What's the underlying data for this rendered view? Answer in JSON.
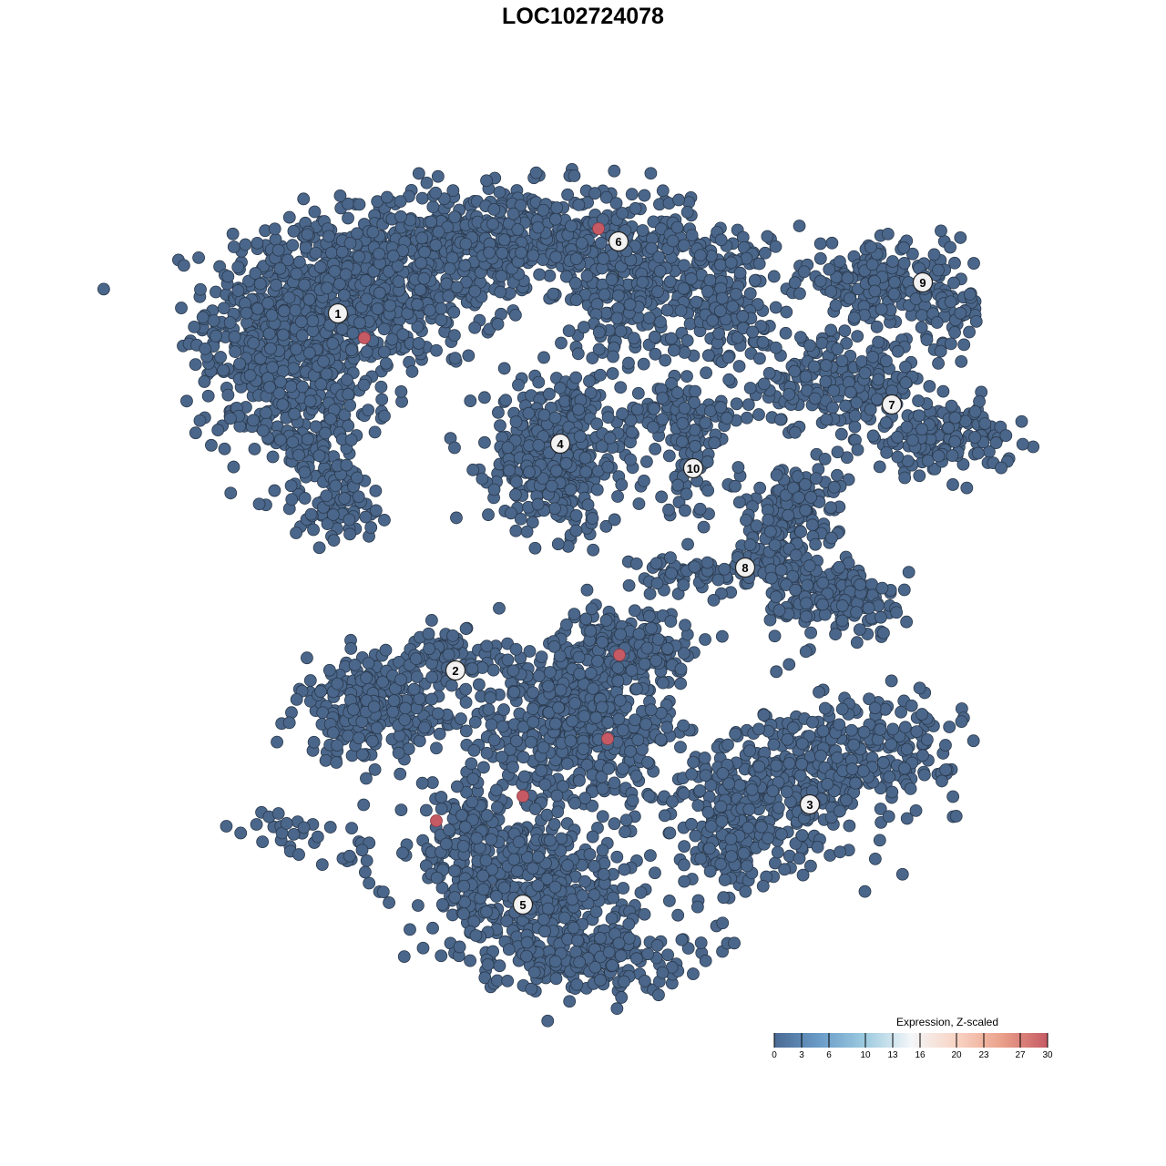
{
  "chart_data": {
    "type": "scatter",
    "title": "LOC102724078",
    "xlabel": "",
    "ylabel": "",
    "grid": false,
    "xlim": [
      -50,
      50
    ],
    "ylim": [
      -50,
      50
    ],
    "point_color": "#4a668a",
    "point_stroke": "#2b3a4d",
    "highlight_color": "#c65a64",
    "clusters": [
      {
        "label": "1",
        "center": [
          -26.9,
          29.6
        ],
        "regions": [
          [
            -30,
            30,
            7,
            6,
            500
          ],
          [
            -20,
            32,
            7,
            5,
            300
          ],
          [
            -31,
            19,
            5,
            5,
            220
          ],
          [
            -27,
            9,
            4,
            3,
            90
          ],
          [
            -36,
            26,
            4,
            5,
            100
          ]
        ]
      },
      {
        "label": "6",
        "center": [
          3.9,
          37.5
        ],
        "regions": [
          [
            -7,
            38,
            12,
            3.5,
            550
          ],
          [
            10,
            34,
            7,
            3.5,
            220
          ],
          [
            16,
            29,
            4,
            3,
            90
          ],
          [
            4,
            28,
            5,
            4,
            80
          ]
        ]
      },
      {
        "label": "4",
        "center": [
          -2.5,
          15.3
        ],
        "regions": [
          [
            -3,
            14,
            4.5,
            5,
            420
          ]
        ]
      },
      {
        "label": "10",
        "center": [
          12.1,
          12.6
        ],
        "regions": [
          [
            12,
            14,
            3,
            4,
            80
          ],
          [
            10,
            19,
            6,
            1.8,
            70
          ]
        ]
      },
      {
        "label": "9",
        "center": [
          37.3,
          33
        ],
        "regions": [
          [
            32,
            33,
            5,
            2.5,
            150
          ],
          [
            40,
            30,
            2.5,
            4,
            70
          ]
        ]
      },
      {
        "label": "7",
        "center": [
          33.9,
          19.6
        ],
        "regions": [
          [
            28,
            22,
            6,
            3,
            200
          ],
          [
            39,
            16,
            5,
            2.5,
            160
          ],
          [
            24,
            8,
            3,
            4,
            90
          ]
        ]
      },
      {
        "label": "8",
        "center": [
          17.8,
          1.7
        ],
        "regions": [
          [
            21,
            4,
            3,
            5,
            110
          ],
          [
            29,
            -2,
            4,
            2.5,
            130
          ],
          [
            12,
            1,
            4,
            1.5,
            60
          ]
        ]
      },
      {
        "label": "2",
        "center": [
          -14,
          -9.6
        ],
        "regions": [
          [
            -23,
            -14,
            5,
            3.5,
            250
          ],
          [
            -15,
            -8,
            3.5,
            1.8,
            70
          ],
          [
            -33,
            -27,
            2.5,
            1.5,
            20
          ],
          [
            -26,
            -29,
            2.5,
            1.5,
            15
          ]
        ]
      },
      {
        "label": "3",
        "center": [
          24.9,
          -24.3
        ],
        "regions": [
          [
            22,
            -22,
            7,
            5,
            350
          ],
          [
            33,
            -18,
            5,
            3.5,
            160
          ],
          [
            16,
            -29,
            4,
            4,
            110
          ]
        ]
      },
      {
        "label": "5",
        "center": [
          -6.6,
          -35.3
        ],
        "regions": [
          [
            -6,
            -33,
            7,
            5,
            420
          ],
          [
            0,
            -41,
            7,
            2.5,
            200
          ],
          [
            -12,
            -26,
            3.5,
            3.5,
            90
          ],
          [
            -1,
            -15,
            7,
            6,
            550
          ],
          [
            5,
            -7,
            5,
            3,
            150
          ]
        ]
      }
    ],
    "highlighted_points": [
      [
        1.7,
        38.9
      ],
      [
        -24,
        26.9
      ],
      [
        4,
        -7.9
      ],
      [
        2.7,
        -17.1
      ],
      [
        -6.6,
        -23.4
      ],
      [
        -16.1,
        -26.1
      ]
    ],
    "colorbar": {
      "title": "Expression, Z-scaled",
      "ticks": [
        0,
        3,
        6,
        10,
        13,
        16,
        20,
        23,
        27,
        30
      ],
      "range": [
        0,
        30
      ],
      "colors": [
        "#4a6a94",
        "#6a9cc8",
        "#9dcbe0",
        "#f3f6f8",
        "#f9d4c4",
        "#eaa08a",
        "#c65a64"
      ]
    }
  }
}
